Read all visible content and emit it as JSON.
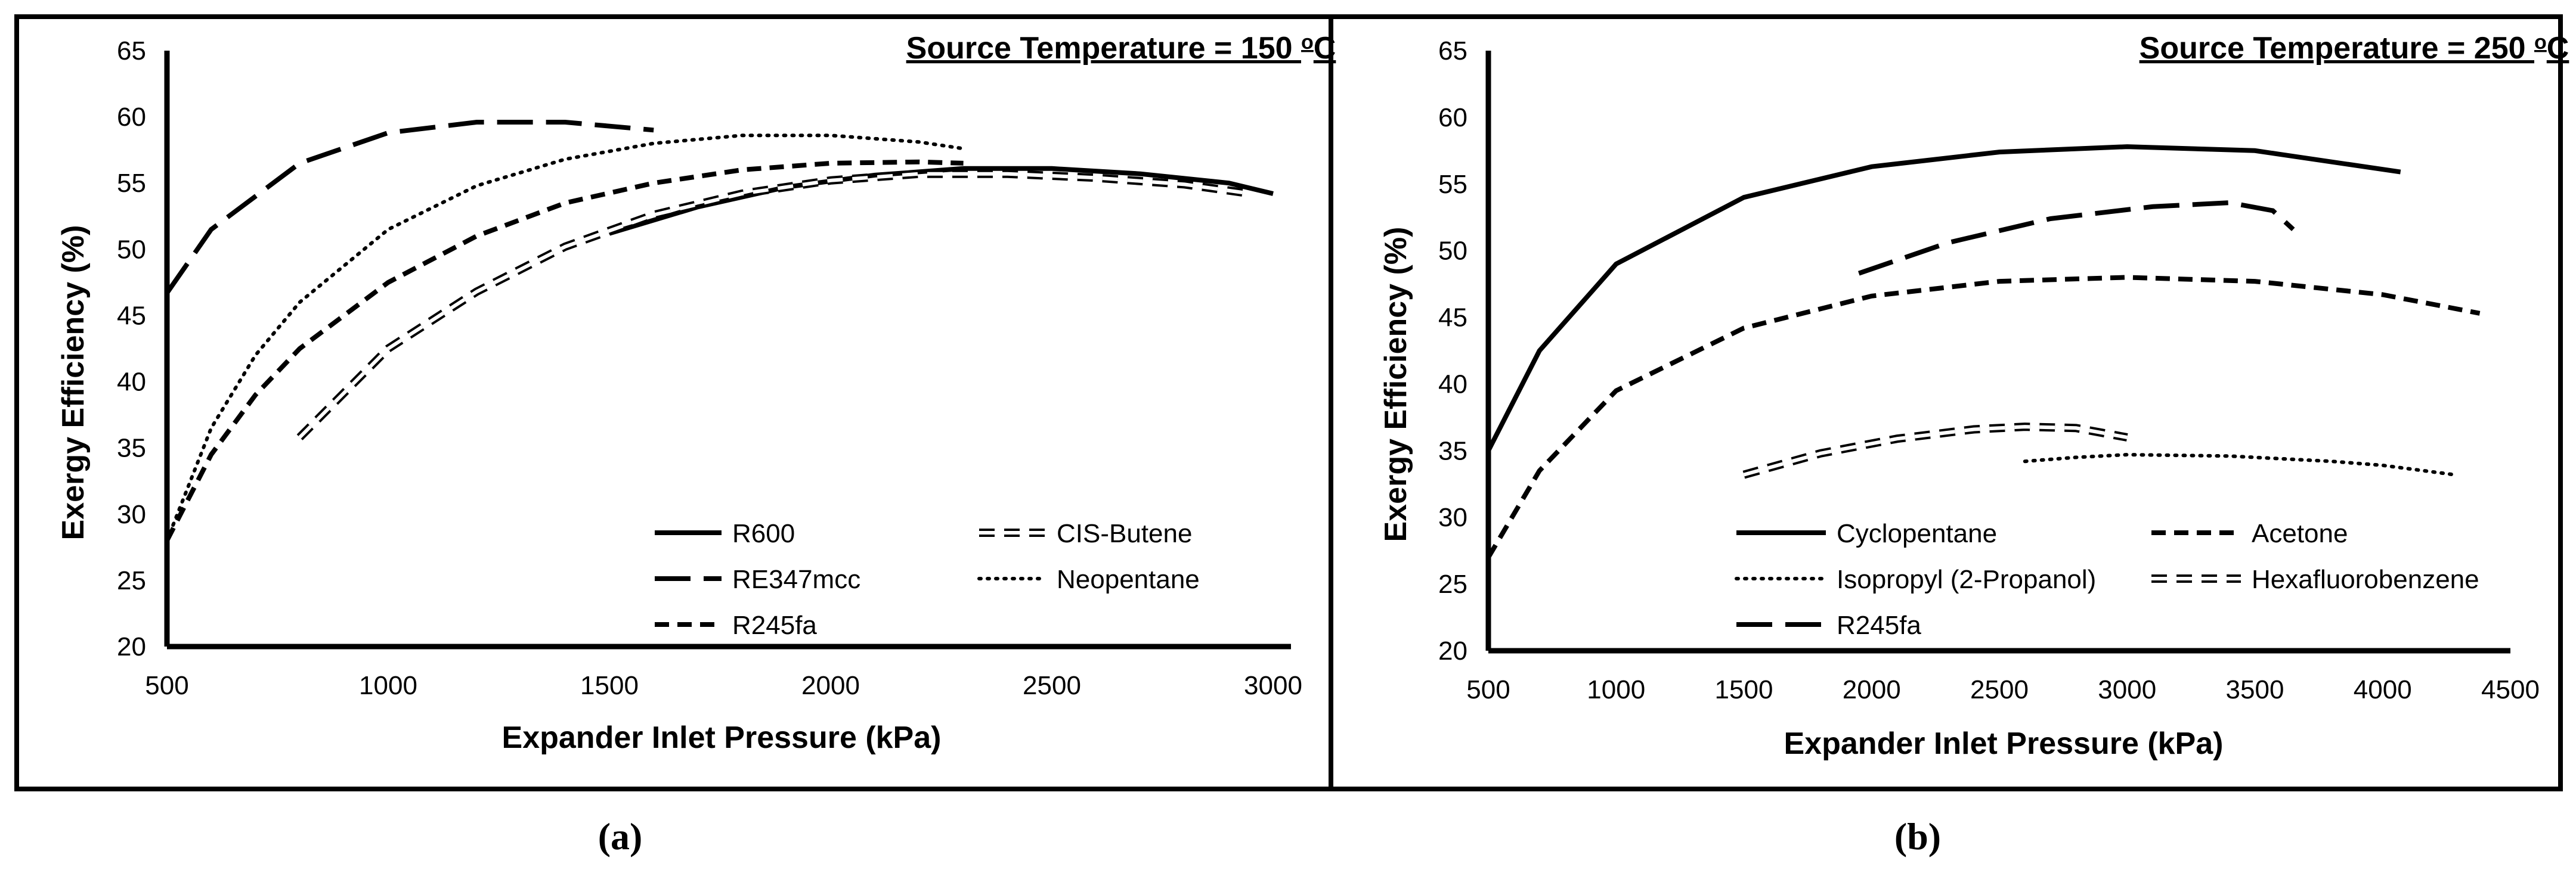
{
  "chart_data": [
    {
      "type": "line",
      "panel_label": "(a)",
      "title": "Source Temperature = 150 °C",
      "title_main": "Source Temperature = 150 ",
      "title_sup": "o",
      "title_end": "C",
      "xlabel": "Expander Inlet Pressure (kPa)",
      "ylabel": "Exergy Efficiency (%)",
      "xlim": [
        500,
        3000
      ],
      "ylim": [
        20,
        65
      ],
      "xticks": [
        500,
        1000,
        1500,
        2000,
        2500,
        3000
      ],
      "yticks": [
        20,
        25,
        30,
        35,
        40,
        45,
        50,
        55,
        60,
        65
      ],
      "grid": false,
      "legend_position": "bottom-right",
      "series": [
        {
          "name": "R600",
          "style": "solid",
          "x": [
            1500,
            1700,
            1900,
            2100,
            2300,
            2500,
            2700,
            2900,
            3000
          ],
          "y": [
            51.2,
            53.2,
            54.7,
            55.6,
            56.1,
            56.1,
            55.7,
            55.0,
            54.2
          ]
        },
        {
          "name": "CIS-Butene",
          "style": "hollow",
          "x": [
            800,
            1000,
            1200,
            1400,
            1600,
            1800,
            2000,
            2200,
            2400,
            2600,
            2800,
            2950
          ],
          "y": [
            35.8,
            42.5,
            46.8,
            50.2,
            52.6,
            54.2,
            55.2,
            55.7,
            55.7,
            55.4,
            54.9,
            54.2
          ]
        },
        {
          "name": "RE347mcc",
          "style": "longdash",
          "x": [
            500,
            600,
            800,
            1000,
            1200,
            1400,
            1600
          ],
          "y": [
            46.7,
            51.5,
            56.5,
            58.8,
            59.6,
            59.6,
            59.0
          ]
        },
        {
          "name": "Neopentane",
          "style": "dotted",
          "x": [
            500,
            600,
            700,
            800,
            1000,
            1200,
            1400,
            1600,
            1800,
            2000,
            2200,
            2300
          ],
          "y": [
            28.0,
            36.5,
            42.0,
            46.0,
            51.5,
            54.8,
            56.8,
            58.0,
            58.6,
            58.6,
            58.1,
            57.6
          ]
        },
        {
          "name": "R245fa",
          "style": "shortdash",
          "x": [
            500,
            600,
            700,
            800,
            1000,
            1200,
            1400,
            1600,
            1800,
            2000,
            2200,
            2300
          ],
          "y": [
            28.0,
            34.5,
            39.0,
            42.5,
            47.5,
            51.0,
            53.5,
            55.0,
            56.0,
            56.5,
            56.6,
            56.5
          ]
        }
      ]
    },
    {
      "type": "line",
      "panel_label": "(b)",
      "title": "Source Temperature = 250 °C",
      "title_main": "Source Temperature = 250 ",
      "title_sup": "o",
      "title_end": "C",
      "xlabel": "Expander Inlet Pressure (kPa)",
      "ylabel": "Exergy Efficiency (%)",
      "xlim": [
        500,
        4500
      ],
      "ylim": [
        20,
        65
      ],
      "xticks": [
        500,
        1000,
        1500,
        2000,
        2500,
        3000,
        3500,
        4000,
        4500
      ],
      "yticks": [
        20,
        25,
        30,
        35,
        40,
        45,
        50,
        55,
        60,
        65
      ],
      "grid": false,
      "legend_position": "bottom",
      "series": [
        {
          "name": "Cyclopentane",
          "style": "solid",
          "x": [
            500,
            700,
            1000,
            1500,
            2000,
            2500,
            3000,
            3500,
            4070
          ],
          "y": [
            35.0,
            42.5,
            49.0,
            54.0,
            56.3,
            57.4,
            57.8,
            57.5,
            55.9
          ]
        },
        {
          "name": "Acetone",
          "style": "shortdash",
          "x": [
            500,
            700,
            1000,
            1500,
            2000,
            2500,
            3000,
            3500,
            4000,
            4380
          ],
          "y": [
            27.0,
            33.5,
            39.5,
            44.2,
            46.6,
            47.7,
            48.0,
            47.7,
            46.7,
            45.3
          ]
        },
        {
          "name": "Isopropyl (2-Propanol)",
          "style": "dotted",
          "x": [
            2600,
            2800,
            3000,
            3400,
            3800,
            4000,
            4280
          ],
          "y": [
            34.2,
            34.5,
            34.7,
            34.6,
            34.2,
            33.9,
            33.2
          ]
        },
        {
          "name": "Hexafluorobenzene",
          "style": "hollow",
          "x": [
            1500,
            1800,
            2100,
            2400,
            2600,
            2800,
            3000
          ],
          "y": [
            33.2,
            34.8,
            35.9,
            36.6,
            36.8,
            36.7,
            36.0
          ]
        },
        {
          "name": "R245fa",
          "style": "longdash",
          "x": [
            1950,
            2300,
            2700,
            3100,
            3400,
            3570,
            3650
          ],
          "y": [
            48.3,
            50.6,
            52.4,
            53.3,
            53.6,
            53.0,
            51.6
          ]
        }
      ]
    }
  ]
}
